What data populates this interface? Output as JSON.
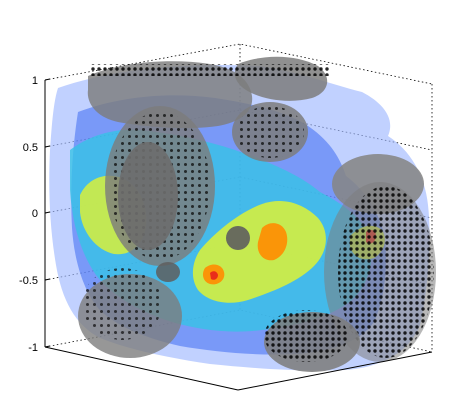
{
  "chart_data": {
    "type": "other",
    "title": "",
    "xlabel": "",
    "ylabel": "",
    "zlabel": "",
    "z_ticks": [
      "1",
      "0.5",
      "0",
      "-0.5",
      "-1"
    ],
    "zlim": [
      -1,
      1
    ],
    "grid": true,
    "colors": {
      "outer_shell": "#9fb8ff",
      "inner_shell": "#3e6cf2",
      "mid_layer": "#36c3e6",
      "warm_layer": "#d8f03a",
      "hot_spot": "#ff8c00",
      "peak": "#e8271b",
      "spheres": "#7d7d7d",
      "markers": "#000000"
    }
  }
}
